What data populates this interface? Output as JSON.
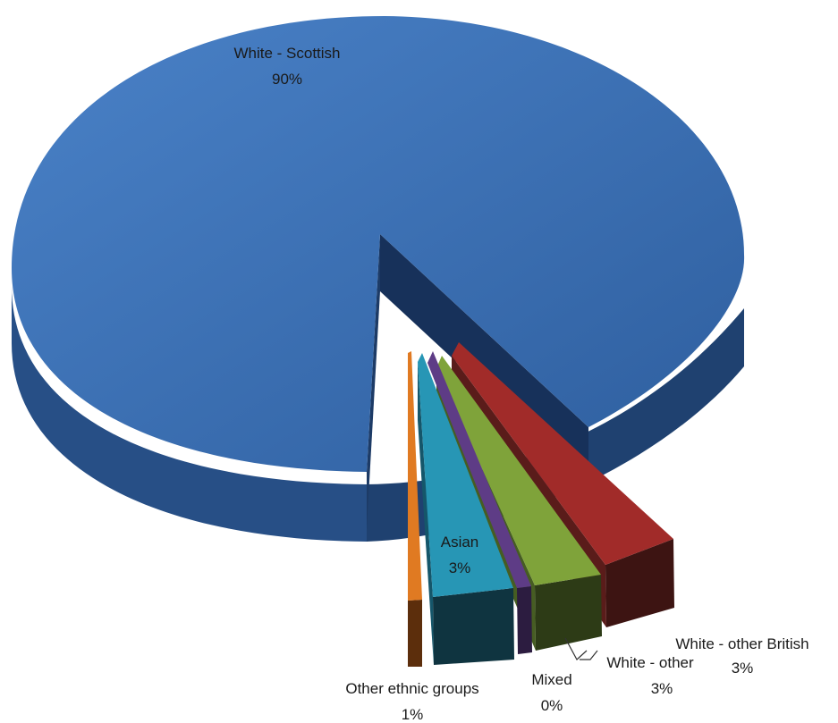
{
  "chart_data": {
    "type": "pie",
    "style": "3d-exploded",
    "title": "",
    "slices": [
      {
        "name": "White - Scottish",
        "value": 90,
        "label": "White - Scottish",
        "pct": "90%",
        "color": "#3a6fb5"
      },
      {
        "name": "White - other British",
        "value": 3,
        "label": "White - other British",
        "pct": "3%",
        "color": "#a12b29"
      },
      {
        "name": "White - other",
        "value": 3,
        "label": "White - other",
        "pct": "3%",
        "color": "#7fa33a"
      },
      {
        "name": "Mixed",
        "value": 0.5,
        "label": "Mixed",
        "pct": "0%",
        "color": "#5e3c86"
      },
      {
        "name": "Asian",
        "value": 3,
        "label": "Asian",
        "pct": "3%",
        "color": "#2796b5"
      },
      {
        "name": "Other ethnic groups",
        "value": 1,
        "label": "Other ethnic groups",
        "pct": "1%",
        "color": "#e07a22"
      }
    ]
  }
}
